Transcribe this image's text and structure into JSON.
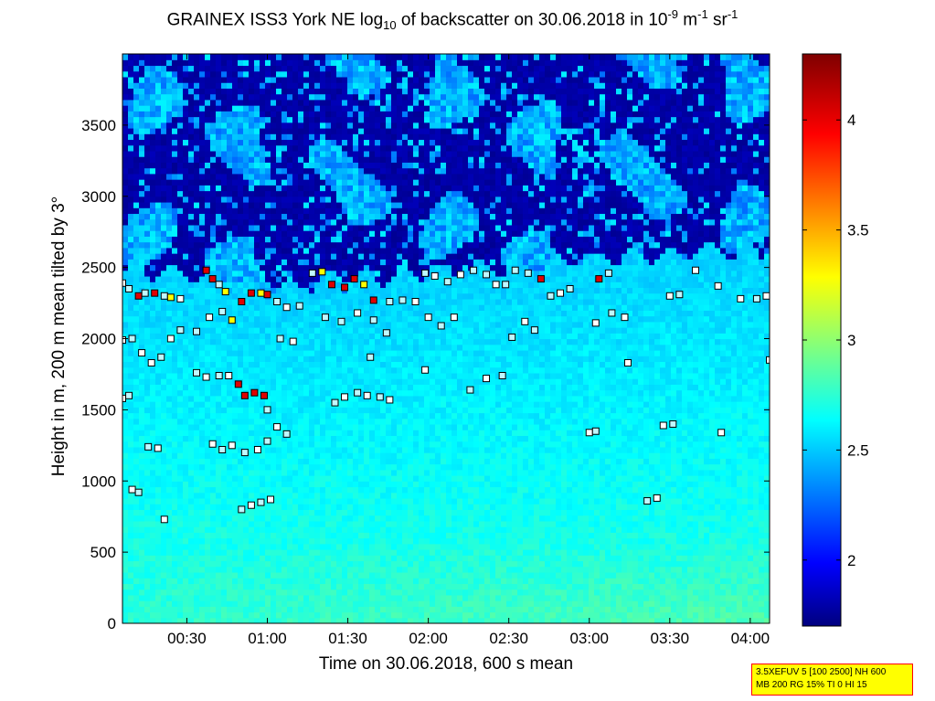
{
  "chart_data": {
    "type": "heatmap",
    "title_main": "GRAINEX ISS3 York NE log",
    "title_sub": "10",
    "title_mid": " of backscatter on 30.06.2018 in 10",
    "title_exp1": "-9",
    "title_unit_m": " m",
    "title_exp2": "-1",
    "title_unit_sr": " sr",
    "title_exp3": "-1",
    "xlabel": "Time on 30.06.2018, 600 s mean",
    "ylabel": "Height in m, 200 m mean tilted by 3°",
    "x_range_hours": [
      0.1,
      4.12
    ],
    "ylim": [
      0,
      4000
    ],
    "x_ticks": [
      {
        "label": "00:30",
        "value": 0.5
      },
      {
        "label": "01:00",
        "value": 1.0
      },
      {
        "label": "01:30",
        "value": 1.5
      },
      {
        "label": "02:00",
        "value": 2.0
      },
      {
        "label": "02:30",
        "value": 2.5
      },
      {
        "label": "03:00",
        "value": 3.0
      },
      {
        "label": "03:30",
        "value": 3.5
      },
      {
        "label": "04:00",
        "value": 4.0
      }
    ],
    "y_ticks": [
      {
        "label": "0",
        "value": 0
      },
      {
        "label": "500",
        "value": 500
      },
      {
        "label": "1000",
        "value": 1000
      },
      {
        "label": "1500",
        "value": 1500
      },
      {
        "label": "2000",
        "value": 2000
      },
      {
        "label": "2500",
        "value": 2500
      },
      {
        "label": "3000",
        "value": 3000
      },
      {
        "label": "3500",
        "value": 3500
      }
    ],
    "colorbar": {
      "range": [
        1.7,
        4.3
      ],
      "colormap": "jet",
      "ticks": [
        {
          "label": "2",
          "value": 2.0
        },
        {
          "label": "2.5",
          "value": 2.5
        },
        {
          "label": "3",
          "value": 3.0
        },
        {
          "label": "3.5",
          "value": 3.5
        },
        {
          "label": "4",
          "value": 4.0
        }
      ]
    },
    "boundary_layer_top_m": [
      [
        0.1,
        2500
      ],
      [
        0.5,
        2450
      ],
      [
        1.0,
        2350
      ],
      [
        1.5,
        2400
      ],
      [
        2.0,
        2480
      ],
      [
        2.5,
        2500
      ],
      [
        3.0,
        2550
      ],
      [
        3.5,
        2600
      ],
      [
        4.12,
        2620
      ]
    ],
    "markers": [
      {
        "t": 0.1,
        "h": 2390,
        "v": 2.9
      },
      {
        "t": 0.14,
        "h": 2350,
        "v": 3.0
      },
      {
        "t": 0.2,
        "h": 2300,
        "v": 4.2
      },
      {
        "t": 0.24,
        "h": 2320,
        "v": 3.0
      },
      {
        "t": 0.3,
        "h": 2320,
        "v": 4.1
      },
      {
        "t": 0.36,
        "h": 2300,
        "v": 3.0
      },
      {
        "t": 0.4,
        "h": 2290,
        "v": 3.3
      },
      {
        "t": 0.46,
        "h": 2280,
        "v": 2.9
      },
      {
        "t": 0.62,
        "h": 2480,
        "v": 4.1
      },
      {
        "t": 0.66,
        "h": 2420,
        "v": 4.2
      },
      {
        "t": 0.7,
        "h": 2380,
        "v": 3.0
      },
      {
        "t": 0.74,
        "h": 2330,
        "v": 3.4
      },
      {
        "t": 0.78,
        "h": 2130,
        "v": 3.5
      },
      {
        "t": 0.84,
        "h": 2260,
        "v": 4.2
      },
      {
        "t": 0.9,
        "h": 2320,
        "v": 4.2
      },
      {
        "t": 0.96,
        "h": 2320,
        "v": 3.4
      },
      {
        "t": 1.0,
        "h": 2310,
        "v": 4.1
      },
      {
        "t": 1.06,
        "h": 2260,
        "v": 3.0
      },
      {
        "t": 1.12,
        "h": 2220,
        "v": 2.9
      },
      {
        "t": 1.2,
        "h": 2230,
        "v": 3.0
      },
      {
        "t": 1.28,
        "h": 2460,
        "v": 3.0
      },
      {
        "t": 1.34,
        "h": 2470,
        "v": 3.4
      },
      {
        "t": 1.4,
        "h": 2380,
        "v": 4.1
      },
      {
        "t": 1.48,
        "h": 2360,
        "v": 4.2
      },
      {
        "t": 1.54,
        "h": 2420,
        "v": 4.1
      },
      {
        "t": 1.6,
        "h": 2380,
        "v": 3.5
      },
      {
        "t": 1.66,
        "h": 2270,
        "v": 4.2
      },
      {
        "t": 1.76,
        "h": 2260,
        "v": 3.0
      },
      {
        "t": 1.84,
        "h": 2270,
        "v": 3.0
      },
      {
        "t": 1.92,
        "h": 2260,
        "v": 2.9
      },
      {
        "t": 1.98,
        "h": 2460,
        "v": 3.0
      },
      {
        "t": 2.04,
        "h": 2440,
        "v": 2.9
      },
      {
        "t": 2.12,
        "h": 2400,
        "v": 3.0
      },
      {
        "t": 2.2,
        "h": 2450,
        "v": 2.9
      },
      {
        "t": 2.28,
        "h": 2480,
        "v": 3.0
      },
      {
        "t": 2.36,
        "h": 2450,
        "v": 3.0
      },
      {
        "t": 2.42,
        "h": 2380,
        "v": 2.9
      },
      {
        "t": 2.48,
        "h": 2380,
        "v": 3.0
      },
      {
        "t": 2.54,
        "h": 2480,
        "v": 3.0
      },
      {
        "t": 2.62,
        "h": 2460,
        "v": 3.0
      },
      {
        "t": 2.7,
        "h": 2420,
        "v": 4.1
      },
      {
        "t": 2.76,
        "h": 2300,
        "v": 3.0
      },
      {
        "t": 2.82,
        "h": 2320,
        "v": 2.9
      },
      {
        "t": 2.88,
        "h": 2350,
        "v": 3.0
      },
      {
        "t": 3.06,
        "h": 2420,
        "v": 4.2
      },
      {
        "t": 3.12,
        "h": 2460,
        "v": 3.0
      },
      {
        "t": 3.5,
        "h": 2300,
        "v": 2.9
      },
      {
        "t": 3.56,
        "h": 2310,
        "v": 3.0
      },
      {
        "t": 3.66,
        "h": 2480,
        "v": 2.9
      },
      {
        "t": 3.8,
        "h": 2370,
        "v": 2.9
      },
      {
        "t": 3.94,
        "h": 2280,
        "v": 2.9
      },
      {
        "t": 4.04,
        "h": 2280,
        "v": 3.0
      },
      {
        "t": 4.1,
        "h": 2300,
        "v": 2.9
      },
      {
        "t": 0.1,
        "h": 1990,
        "v": 2.9
      },
      {
        "t": 0.16,
        "h": 2000,
        "v": 3.0
      },
      {
        "t": 0.22,
        "h": 1900,
        "v": 2.9
      },
      {
        "t": 0.28,
        "h": 1830,
        "v": 2.9
      },
      {
        "t": 0.34,
        "h": 1870,
        "v": 3.0
      },
      {
        "t": 0.4,
        "h": 2000,
        "v": 2.9
      },
      {
        "t": 0.46,
        "h": 2060,
        "v": 3.0
      },
      {
        "t": 0.56,
        "h": 2050,
        "v": 3.0
      },
      {
        "t": 0.64,
        "h": 2150,
        "v": 2.9
      },
      {
        "t": 0.72,
        "h": 2190,
        "v": 3.0
      },
      {
        "t": 1.08,
        "h": 2000,
        "v": 3.0
      },
      {
        "t": 1.16,
        "h": 1980,
        "v": 2.9
      },
      {
        "t": 1.36,
        "h": 2150,
        "v": 3.0
      },
      {
        "t": 1.46,
        "h": 2120,
        "v": 3.0
      },
      {
        "t": 1.56,
        "h": 2180,
        "v": 2.9
      },
      {
        "t": 1.66,
        "h": 2130,
        "v": 3.0
      },
      {
        "t": 1.74,
        "h": 2040,
        "v": 3.0
      },
      {
        "t": 2.0,
        "h": 2150,
        "v": 2.9
      },
      {
        "t": 2.08,
        "h": 2090,
        "v": 3.0
      },
      {
        "t": 2.16,
        "h": 2150,
        "v": 2.9
      },
      {
        "t": 2.52,
        "h": 2010,
        "v": 3.0
      },
      {
        "t": 2.6,
        "h": 2120,
        "v": 2.9
      },
      {
        "t": 2.66,
        "h": 2060,
        "v": 3.0
      },
      {
        "t": 3.04,
        "h": 2110,
        "v": 2.9
      },
      {
        "t": 3.14,
        "h": 2180,
        "v": 3.0
      },
      {
        "t": 3.22,
        "h": 2150,
        "v": 2.9
      },
      {
        "t": 4.12,
        "h": 1850,
        "v": 2.9
      },
      {
        "t": 0.1,
        "h": 1580,
        "v": 2.9
      },
      {
        "t": 0.14,
        "h": 1600,
        "v": 3.0
      },
      {
        "t": 0.56,
        "h": 1760,
        "v": 3.0
      },
      {
        "t": 0.62,
        "h": 1730,
        "v": 2.9
      },
      {
        "t": 0.7,
        "h": 1740,
        "v": 3.0
      },
      {
        "t": 0.76,
        "h": 1740,
        "v": 2.9
      },
      {
        "t": 0.82,
        "h": 1680,
        "v": 4.2
      },
      {
        "t": 0.86,
        "h": 1600,
        "v": 4.1
      },
      {
        "t": 0.92,
        "h": 1620,
        "v": 4.2
      },
      {
        "t": 0.98,
        "h": 1600,
        "v": 4.1
      },
      {
        "t": 1.0,
        "h": 1500,
        "v": 3.0
      },
      {
        "t": 1.42,
        "h": 1550,
        "v": 3.0
      },
      {
        "t": 1.48,
        "h": 1590,
        "v": 2.9
      },
      {
        "t": 1.56,
        "h": 1620,
        "v": 3.0
      },
      {
        "t": 1.62,
        "h": 1600,
        "v": 2.9
      },
      {
        "t": 1.7,
        "h": 1590,
        "v": 3.0
      },
      {
        "t": 1.76,
        "h": 1570,
        "v": 2.9
      },
      {
        "t": 1.64,
        "h": 1870,
        "v": 3.0
      },
      {
        "t": 1.98,
        "h": 1780,
        "v": 2.9
      },
      {
        "t": 2.26,
        "h": 1640,
        "v": 3.0
      },
      {
        "t": 2.36,
        "h": 1720,
        "v": 2.9
      },
      {
        "t": 2.46,
        "h": 1740,
        "v": 3.0
      },
      {
        "t": 3.24,
        "h": 1830,
        "v": 2.9
      },
      {
        "t": 0.26,
        "h": 1240,
        "v": 3.0
      },
      {
        "t": 0.32,
        "h": 1230,
        "v": 2.9
      },
      {
        "t": 0.66,
        "h": 1260,
        "v": 2.9
      },
      {
        "t": 0.72,
        "h": 1220,
        "v": 3.0
      },
      {
        "t": 0.78,
        "h": 1250,
        "v": 2.9
      },
      {
        "t": 0.86,
        "h": 1200,
        "v": 3.0
      },
      {
        "t": 0.94,
        "h": 1220,
        "v": 2.9
      },
      {
        "t": 1.0,
        "h": 1280,
        "v": 3.0
      },
      {
        "t": 1.06,
        "h": 1380,
        "v": 2.9
      },
      {
        "t": 1.12,
        "h": 1330,
        "v": 3.0
      },
      {
        "t": 3.0,
        "h": 1340,
        "v": 2.9
      },
      {
        "t": 3.04,
        "h": 1350,
        "v": 3.0
      },
      {
        "t": 3.46,
        "h": 1390,
        "v": 2.9
      },
      {
        "t": 3.52,
        "h": 1400,
        "v": 3.0
      },
      {
        "t": 3.82,
        "h": 1340,
        "v": 2.9
      },
      {
        "t": 0.16,
        "h": 940,
        "v": 2.9
      },
      {
        "t": 0.2,
        "h": 920,
        "v": 3.0
      },
      {
        "t": 0.36,
        "h": 730,
        "v": 2.9
      },
      {
        "t": 0.84,
        "h": 800,
        "v": 3.0
      },
      {
        "t": 0.9,
        "h": 830,
        "v": 2.9
      },
      {
        "t": 0.96,
        "h": 850,
        "v": 3.0
      },
      {
        "t": 1.02,
        "h": 870,
        "v": 2.9
      },
      {
        "t": 3.36,
        "h": 860,
        "v": 3.0
      },
      {
        "t": 3.42,
        "h": 880,
        "v": 2.9
      }
    ]
  },
  "note": {
    "line1": "3.5XEFUV 5 [100 2500] NH 600",
    "line2": "MB 200 RG 15% TI 0 HI 15"
  }
}
